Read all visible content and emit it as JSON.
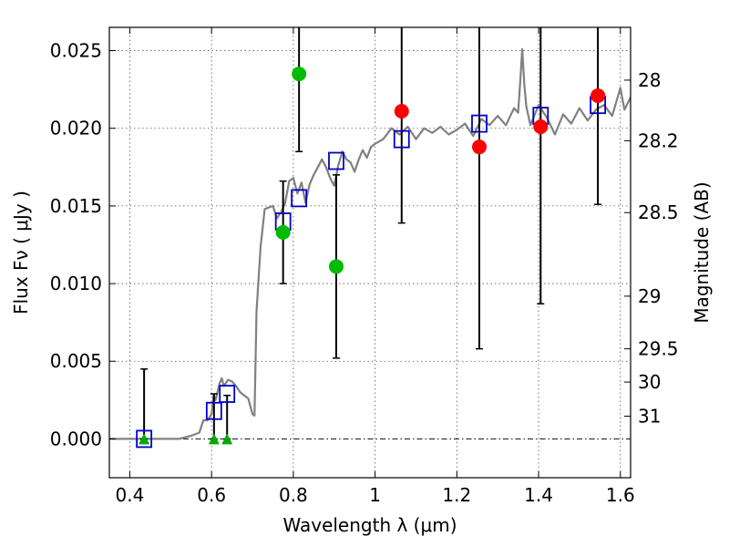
{
  "chart_data": {
    "type": "scatter",
    "xlabel": "Wavelength  λ (μm)",
    "ylabel": "Flux  Fν  ( μJy )",
    "ylabel_right": "Magnitude (AB)",
    "xlim": [
      0.35,
      1.625
    ],
    "ylim": [
      -0.0025,
      0.0265
    ],
    "grid": true,
    "x_ticks": [
      0.4,
      0.6,
      0.8,
      1.0,
      1.2,
      1.4,
      1.6
    ],
    "x_tick_labels": [
      "0.4",
      "0.6",
      "0.8",
      "1",
      "1.2",
      "1.4",
      "1.6"
    ],
    "y_ticks": [
      0.0,
      0.005,
      0.01,
      0.015,
      0.02,
      0.025
    ],
    "y_tick_labels": [
      "0.000",
      "0.005",
      "0.010",
      "0.015",
      "0.020",
      "0.025"
    ],
    "right_ticks": [
      {
        "label": "28",
        "flux": 0.0231
      },
      {
        "label": "28.2",
        "flux": 0.0192
      },
      {
        "label": "28.5",
        "flux": 0.01457
      },
      {
        "label": "29",
        "flux": 0.00919
      },
      {
        "label": "29.5",
        "flux": 0.0058
      },
      {
        "label": "30",
        "flux": 0.00366
      },
      {
        "label": "31",
        "flux": 0.00146
      }
    ],
    "series": [
      {
        "kind": "sed",
        "color": "#808080",
        "x": [
          0.35,
          0.43,
          0.52,
          0.55,
          0.57,
          0.58,
          0.59,
          0.6,
          0.605,
          0.61,
          0.62,
          0.625,
          0.63,
          0.64,
          0.65,
          0.66,
          0.67,
          0.68,
          0.69,
          0.7,
          0.705,
          0.71,
          0.72,
          0.73,
          0.75,
          0.76,
          0.77,
          0.78,
          0.79,
          0.8,
          0.81,
          0.82,
          0.83,
          0.84,
          0.85,
          0.86,
          0.87,
          0.88,
          0.89,
          0.9,
          0.91,
          0.92,
          0.93,
          0.94,
          0.95,
          0.96,
          0.97,
          0.98,
          0.99,
          1.0,
          1.02,
          1.04,
          1.06,
          1.08,
          1.1,
          1.12,
          1.14,
          1.16,
          1.18,
          1.2,
          1.22,
          1.24,
          1.26,
          1.28,
          1.3,
          1.32,
          1.34,
          1.35,
          1.355,
          1.36,
          1.365,
          1.37,
          1.38,
          1.4,
          1.42,
          1.44,
          1.46,
          1.48,
          1.5,
          1.52,
          1.54,
          1.56,
          1.58,
          1.6,
          1.61,
          1.625
        ],
        "y": [
          0.0,
          0.0,
          0.0,
          0.0002,
          0.0004,
          0.0012,
          0.0012,
          0.0016,
          0.0028,
          0.0025,
          0.0036,
          0.0039,
          0.0034,
          0.0038,
          0.0037,
          0.0034,
          0.003,
          0.0028,
          0.0026,
          0.0016,
          0.0015,
          0.0082,
          0.0124,
          0.0148,
          0.015,
          0.0142,
          0.0146,
          0.0152,
          0.0166,
          0.0168,
          0.0158,
          0.0165,
          0.0152,
          0.0164,
          0.017,
          0.0175,
          0.018,
          0.0175,
          0.0168,
          0.0163,
          0.0176,
          0.0185,
          0.018,
          0.0178,
          0.0172,
          0.018,
          0.0186,
          0.0181,
          0.0188,
          0.019,
          0.0193,
          0.02,
          0.0196,
          0.0201,
          0.0193,
          0.02,
          0.0197,
          0.0201,
          0.0196,
          0.0199,
          0.0203,
          0.0195,
          0.0206,
          0.0202,
          0.0208,
          0.0202,
          0.0213,
          0.021,
          0.023,
          0.0251,
          0.0228,
          0.0214,
          0.0202,
          0.0215,
          0.0207,
          0.0196,
          0.0209,
          0.0203,
          0.0213,
          0.0205,
          0.0212,
          0.0215,
          0.0208,
          0.0226,
          0.0212,
          0.022
        ]
      },
      {
        "kind": "model-photometry",
        "marker": "open-square",
        "color": "#0000cc",
        "x": [
          0.435,
          0.606,
          0.638,
          0.775,
          0.814,
          0.905,
          1.065,
          1.255,
          1.405,
          1.545
        ],
        "y": [
          0.0,
          0.0018,
          0.0029,
          0.014,
          0.0155,
          0.0179,
          0.0193,
          0.0203,
          0.0208,
          0.0215
        ]
      },
      {
        "kind": "upper-limits",
        "marker": "triangle-up",
        "color": "#00aa00",
        "x": [
          0.435,
          0.606,
          0.638
        ],
        "y": [
          0.0,
          0.0,
          0.0
        ]
      },
      {
        "kind": "detections",
        "marker": "circle",
        "color": "#00bb00",
        "x": [
          0.775,
          0.814,
          0.905
        ],
        "y": [
          0.0133,
          0.0235,
          0.0111
        ]
      },
      {
        "kind": "detections",
        "marker": "circle",
        "color": "#ff0000",
        "x": [
          1.065,
          1.255,
          1.405,
          1.545
        ],
        "y": [
          0.0211,
          0.0188,
          0.0201,
          0.0221
        ]
      }
    ],
    "error_bars": [
      {
        "x": 0.435,
        "low": 0.0,
        "high": 0.0045
      },
      {
        "x": 0.606,
        "low": 0.0,
        "high": 0.0029
      },
      {
        "x": 0.638,
        "low": 0.0,
        "high": 0.0028
      },
      {
        "x": 0.775,
        "low": 0.01,
        "high": 0.0166
      },
      {
        "x": 0.814,
        "low": 0.0185,
        "high": 0.0265
      },
      {
        "x": 0.905,
        "low": 0.0052,
        "high": 0.017
      },
      {
        "x": 1.065,
        "low": 0.0139,
        "high": 0.0265
      },
      {
        "x": 1.255,
        "low": 0.0058,
        "high": 0.0265
      },
      {
        "x": 1.405,
        "low": 0.0087,
        "high": 0.0265
      },
      {
        "x": 1.545,
        "low": 0.0151,
        "high": 0.0265
      }
    ]
  }
}
